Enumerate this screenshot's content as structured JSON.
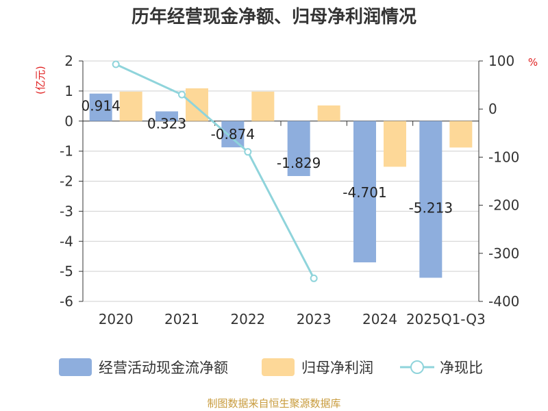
{
  "chart_data": {
    "type": "bar",
    "title": "历年经营现金净额、归母净利润情况",
    "categories": [
      "2020",
      "2021",
      "2022",
      "2023",
      "2024",
      "2025Q1-Q3"
    ],
    "series": [
      {
        "name": "经营活动现金流净额",
        "type": "bar",
        "axis": "left",
        "color": "#8eaedd",
        "values": [
          0.914,
          0.323,
          -0.874,
          -1.829,
          -4.701,
          -5.213
        ],
        "labels": [
          "0.914",
          "0.323",
          "-0.874",
          "-1.829",
          "-4.701",
          "-5.213"
        ]
      },
      {
        "name": "归母净利润",
        "type": "bar",
        "axis": "left",
        "color": "#fdd898",
        "values": [
          0.98,
          1.09,
          0.98,
          0.52,
          -1.52,
          -0.88
        ]
      },
      {
        "name": "净现比",
        "type": "line",
        "axis": "right",
        "color": "#8fd4db",
        "values": [
          93,
          30,
          -89,
          -352,
          null,
          null
        ]
      }
    ],
    "y_left": {
      "label": "(亿元)",
      "min": -6,
      "max": 2,
      "ticks": [
        2,
        1,
        0,
        -1,
        -2,
        -3,
        -4,
        -5,
        -6
      ]
    },
    "y_right": {
      "label": "%",
      "min": -400,
      "max": 100,
      "ticks": [
        100,
        0,
        -100,
        -200,
        -300,
        -400
      ]
    },
    "legend_position": "bottom",
    "source": "制图数据来自恒生聚源数据库"
  }
}
